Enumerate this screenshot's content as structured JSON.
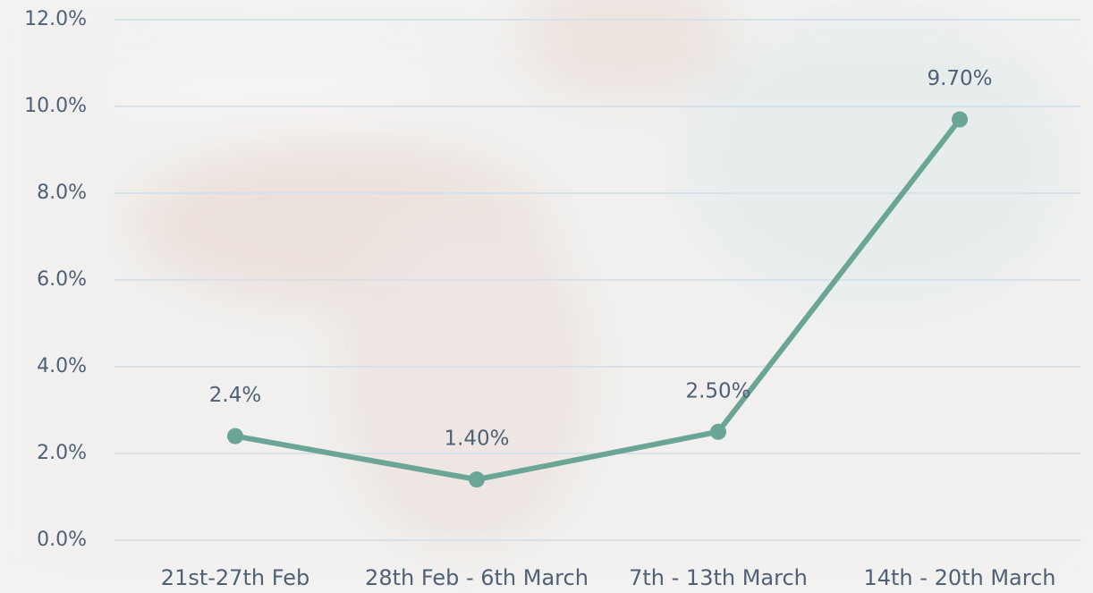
{
  "chart_data": {
    "type": "line",
    "categories": [
      "21st-27th Feb",
      "28th Feb - 6th March",
      "7th - 13th March",
      "14th - 20th March"
    ],
    "values": [
      2.4,
      1.4,
      2.5,
      9.7
    ],
    "value_labels": [
      "2.4%",
      "1.40%",
      "2.50%",
      "9.70%"
    ],
    "color": "#6aa595",
    "ylim": [
      0,
      12
    ],
    "yticks": [
      {
        "value": 0,
        "label": "0.0%"
      },
      {
        "value": 2,
        "label": "2.0%"
      },
      {
        "value": 4,
        "label": "4.0%"
      },
      {
        "value": 6,
        "label": "6.0%"
      },
      {
        "value": 8,
        "label": "8.0%"
      },
      {
        "value": 10,
        "label": "10.0%"
      },
      {
        "value": 12,
        "label": "12.0%"
      }
    ],
    "grid": true
  }
}
